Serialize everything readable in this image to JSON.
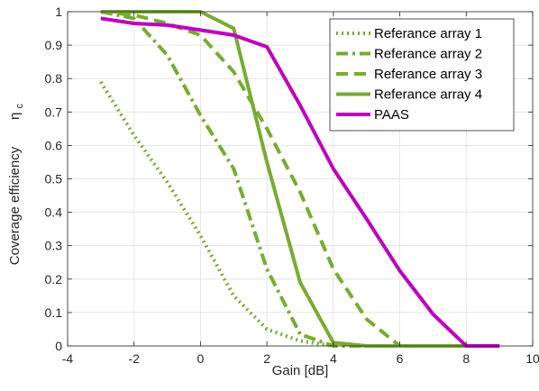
{
  "chart_data": {
    "type": "line",
    "xlabel": "Gain [dB]",
    "ylabel": "Coverage efficiency",
    "ylabel_symbol": "η",
    "ylabel_symbol_sub": "c",
    "xlim": [
      -4,
      10
    ],
    "ylim": [
      0,
      1
    ],
    "xticks": [
      -4,
      -2,
      0,
      2,
      4,
      6,
      8,
      10
    ],
    "yticks": [
      0,
      0.1,
      0.2,
      0.3,
      0.4,
      0.5,
      0.6,
      0.7,
      0.8,
      0.9,
      1
    ],
    "grid": true,
    "legend_position": "top-right",
    "series": [
      {
        "name": "Referance array 1",
        "color": "#77ac30",
        "style": "dotted",
        "x": [
          -3,
          -2,
          -1,
          0,
          1,
          2,
          3,
          4
        ],
        "y": [
          0.79,
          0.63,
          0.49,
          0.33,
          0.15,
          0.05,
          0.015,
          0
        ]
      },
      {
        "name": "Referance array 2",
        "color": "#77ac30",
        "style": "dashdot",
        "x": [
          -3,
          -2,
          -1,
          0,
          1,
          2,
          3,
          4,
          5,
          6,
          7,
          8,
          9
        ],
        "y": [
          1.0,
          0.98,
          0.87,
          0.69,
          0.53,
          0.23,
          0.035,
          0,
          0,
          0,
          0,
          0,
          0
        ]
      },
      {
        "name": "Referance array 3",
        "color": "#77ac30",
        "style": "dashed",
        "x": [
          -3,
          -2,
          -1,
          0,
          1,
          2,
          3,
          4,
          5,
          6
        ],
        "y": [
          1.0,
          0.99,
          0.965,
          0.93,
          0.82,
          0.65,
          0.46,
          0.23,
          0.08,
          0
        ]
      },
      {
        "name": "Referance array 4",
        "color": "#77ac30",
        "style": "solid",
        "x": [
          -3,
          -2,
          -1,
          0,
          1,
          2,
          3,
          4,
          5,
          6,
          7,
          8,
          9
        ],
        "y": [
          1.0,
          1.0,
          1.0,
          1.0,
          0.95,
          0.55,
          0.19,
          0.01,
          0,
          0,
          0,
          0,
          0
        ]
      },
      {
        "name": "PAAS",
        "color": "#bf00bf",
        "style": "solid",
        "x": [
          -3,
          -2,
          -1,
          0,
          1,
          2,
          3,
          4,
          5,
          6,
          7,
          8,
          9
        ],
        "y": [
          0.98,
          0.965,
          0.96,
          0.945,
          0.93,
          0.895,
          0.72,
          0.53,
          0.38,
          0.225,
          0.095,
          0,
          0
        ]
      }
    ]
  }
}
